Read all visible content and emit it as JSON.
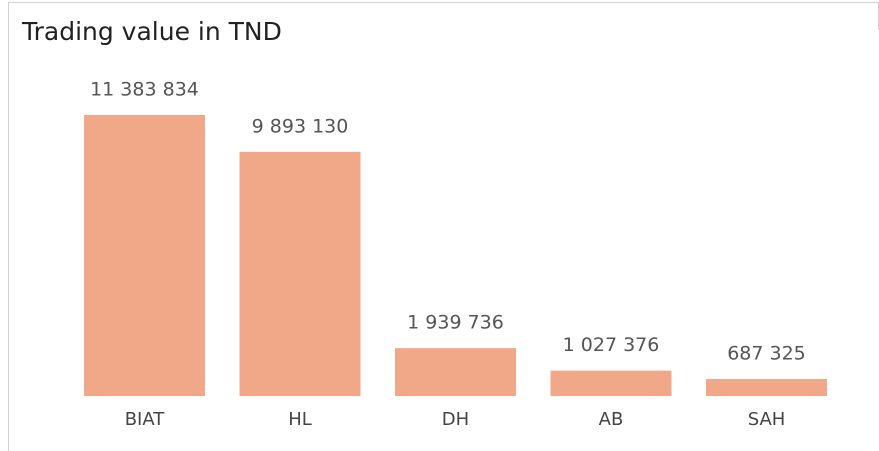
{
  "chart_data": {
    "type": "bar",
    "title": "Trading value in TND",
    "categories": [
      "BIAT",
      "HL",
      "DH",
      "AB",
      "SAH"
    ],
    "values": [
      11383834,
      9893130,
      1939736,
      1027376,
      687325
    ],
    "value_labels": [
      "11 383 834",
      "9 893 130",
      "1 939 736",
      "1 027 376",
      "687 325"
    ],
    "color": "#f0a888"
  }
}
